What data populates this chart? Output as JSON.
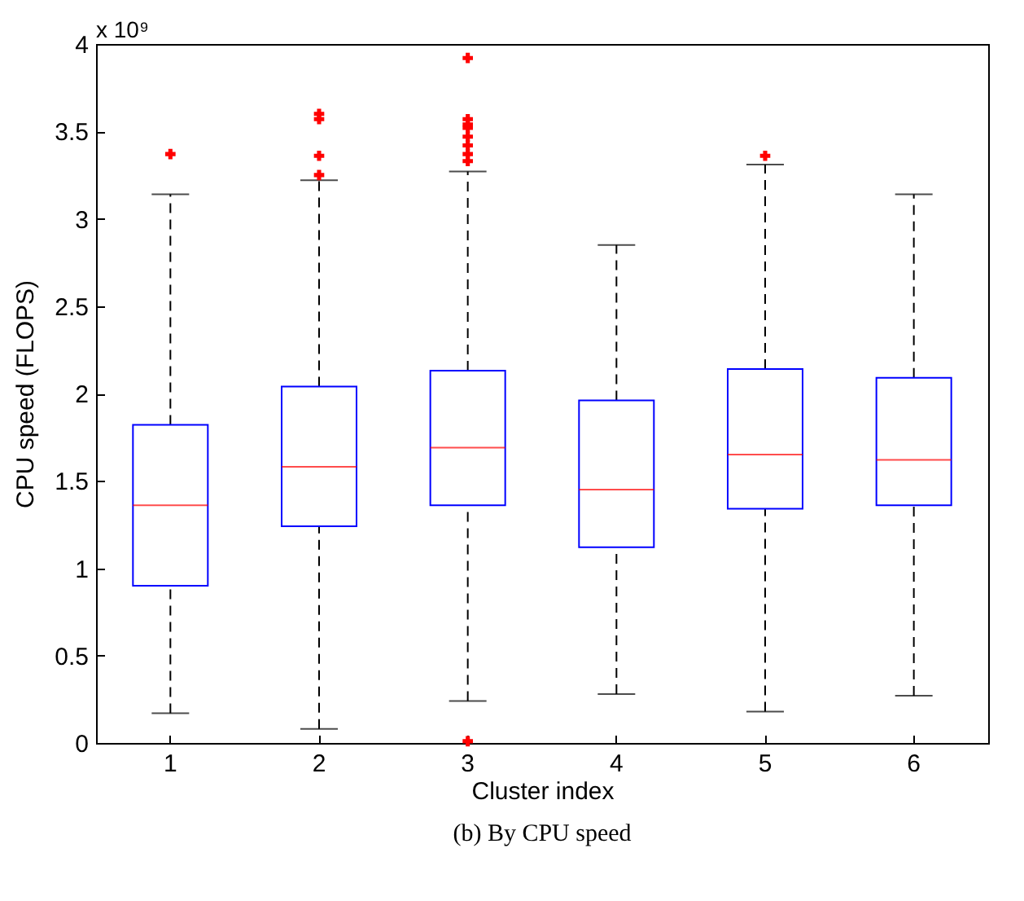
{
  "chart_data": {
    "type": "box",
    "xlabel": "Cluster index",
    "ylabel": "CPU speed (FLOPS)",
    "categories": [
      "1",
      "2",
      "3",
      "4",
      "5",
      "6"
    ],
    "ylim": [
      0,
      4
    ],
    "yticks": [
      0,
      0.5,
      1,
      1.5,
      2,
      2.5,
      3,
      3.5,
      4
    ],
    "line_style": "dashed",
    "grid": false,
    "boxes": [
      {
        "low": 0.17,
        "q1": 0.9,
        "median": 1.36,
        "q3": 1.82,
        "high": 3.14,
        "outliers": [
          3.37
        ]
      },
      {
        "low": 0.08,
        "q1": 1.24,
        "median": 1.58,
        "q3": 2.04,
        "high": 3.22,
        "outliers": [
          3.25,
          3.36,
          3.57,
          3.6
        ]
      },
      {
        "low": 0.24,
        "q1": 1.36,
        "median": 1.69,
        "q3": 2.13,
        "high": 3.27,
        "outliers": [
          0.01,
          3.33,
          3.37,
          3.42,
          3.47,
          3.52,
          3.54,
          3.57,
          3.92
        ]
      },
      {
        "low": 0.28,
        "q1": 1.12,
        "median": 1.45,
        "q3": 1.96,
        "high": 2.85
      },
      {
        "low": 0.18,
        "q1": 1.34,
        "median": 1.65,
        "q3": 2.14,
        "high": 3.31,
        "outliers": [
          3.36
        ]
      },
      {
        "low": 0.27,
        "q1": 1.36,
        "median": 1.62,
        "q3": 2.09,
        "high": 3.14
      }
    ],
    "annotations": [
      "x 10⁹",
      "(b) By CPU speed"
    ]
  }
}
